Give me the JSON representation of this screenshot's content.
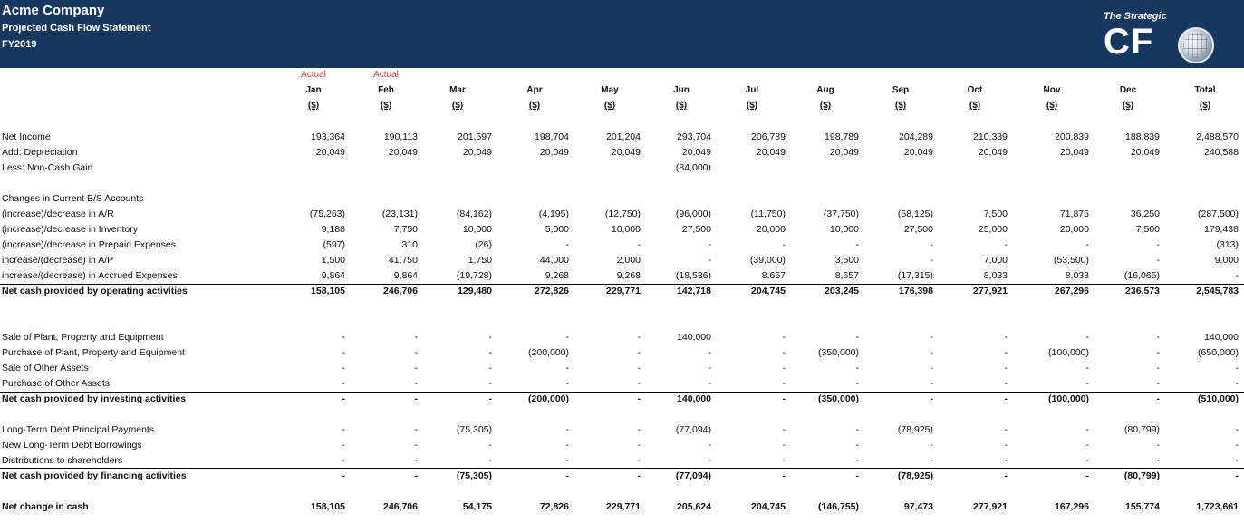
{
  "header": {
    "company": "Acme Company",
    "subtitle": "Projected Cash Flow Statement",
    "year": "FY2019",
    "logo_tagline": "The Strategic",
    "logo_mark": "CF"
  },
  "colors": {
    "header_bg": "#17385e",
    "actual_label": "#e53b2a"
  },
  "columns": [
    {
      "tag": "Actual",
      "month": "Jan",
      "unit": "($)"
    },
    {
      "tag": "Actual",
      "month": "Feb",
      "unit": "($)"
    },
    {
      "tag": "",
      "month": "Mar",
      "unit": "($)"
    },
    {
      "tag": "",
      "month": "Apr",
      "unit": "($)"
    },
    {
      "tag": "",
      "month": "May",
      "unit": "($)"
    },
    {
      "tag": "",
      "month": "Jun",
      "unit": "($)"
    },
    {
      "tag": "",
      "month": "Jul",
      "unit": "($)"
    },
    {
      "tag": "",
      "month": "Aug",
      "unit": "($)"
    },
    {
      "tag": "",
      "month": "Sep",
      "unit": "($)"
    },
    {
      "tag": "",
      "month": "Oct",
      "unit": "($)"
    },
    {
      "tag": "",
      "month": "Nov",
      "unit": "($)"
    },
    {
      "tag": "",
      "month": "Dec",
      "unit": "($)"
    },
    {
      "tag": "",
      "month": "Total",
      "unit": "($)"
    }
  ],
  "rows": [
    {
      "label": "Net Income",
      "values": [
        "193,364",
        "190,113",
        "201,597",
        "198,704",
        "201,204",
        "293,704",
        "206,789",
        "198,789",
        "204,289",
        "210,339",
        "200,839",
        "188,839",
        "2,488,570"
      ]
    },
    {
      "label": "Add: Depreciation",
      "values": [
        "20,049",
        "20,049",
        "20,049",
        "20,049",
        "20,049",
        "20,049",
        "20,049",
        "20,049",
        "20,049",
        "20,049",
        "20,049",
        "20,049",
        "240,588"
      ]
    },
    {
      "label": "Less: Non-Cash Gain",
      "values": [
        "",
        "",
        "",
        "",
        "",
        "(84,000)",
        "",
        "",
        "",
        "",
        "",
        "",
        ""
      ]
    },
    {
      "label": "Changes in Current B/S Accounts",
      "values": [
        "",
        "",
        "",
        "",
        "",
        "",
        "",
        "",
        "",
        "",
        "",
        "",
        ""
      ]
    },
    {
      "label": "(increase)/decrease in A/R",
      "values": [
        "(75,263)",
        "(23,131)",
        "(84,162)",
        "(4,195)",
        "(12,750)",
        "(96,000)",
        "(11,750)",
        "(37,750)",
        "(58,125)",
        "7,500",
        "71,875",
        "36,250",
        "(287,500)"
      ]
    },
    {
      "label": "(increase)/decrease in Inventory",
      "values": [
        "9,188",
        "7,750",
        "10,000",
        "5,000",
        "10,000",
        "27,500",
        "20,000",
        "10,000",
        "27,500",
        "25,000",
        "20,000",
        "7,500",
        "179,438"
      ]
    },
    {
      "label": "(increase)/decrease in Prepaid Expenses",
      "values": [
        "(597)",
        "310",
        "(26)",
        "-",
        "-",
        "-",
        "-",
        "-",
        "-",
        "-",
        "-",
        "-",
        "(313)"
      ]
    },
    {
      "label": "increase/(decrease) in A/P",
      "values": [
        "1,500",
        "41,750",
        "1,750",
        "44,000",
        "2,000",
        "-",
        "(39,000)",
        "3,500",
        "-",
        "7,000",
        "(53,500)",
        "-",
        "9,000"
      ]
    },
    {
      "label": "increase/(decrease) in Accrued Expenses",
      "values": [
        "9,864",
        "9,864",
        "(19,728)",
        "9,268",
        "9,268",
        "(18,536)",
        "8,657",
        "8,657",
        "(17,315)",
        "8,033",
        "8,033",
        "(16,065)",
        "-"
      ]
    },
    {
      "label": "Net cash provided by operating activities",
      "bold": true,
      "values": [
        "158,105",
        "246,706",
        "129,480",
        "272,826",
        "229,771",
        "142,718",
        "204,745",
        "203,245",
        "176,398",
        "277,921",
        "267,296",
        "236,573",
        "2,545,783"
      ]
    },
    {
      "label": "Sale of Plant, Property and Equipment",
      "values": [
        "-",
        "-",
        "-",
        "-",
        "-",
        "140,000",
        "-",
        "-",
        "-",
        "-",
        "-",
        "-",
        "140,000"
      ]
    },
    {
      "label": "Purchase of Plant, Property and Equipment",
      "values": [
        "-",
        "-",
        "-",
        "(200,000)",
        "-",
        "-",
        "-",
        "(350,000)",
        "-",
        "-",
        "(100,000)",
        "-",
        "(650,000)"
      ]
    },
    {
      "label": "Sale of Other Assets",
      "values": [
        "-",
        "-",
        "-",
        "-",
        "-",
        "-",
        "-",
        "-",
        "-",
        "-",
        "-",
        "-",
        "-"
      ]
    },
    {
      "label": "Purchase of Other Assets",
      "values": [
        "-",
        "-",
        "-",
        "-",
        "-",
        "-",
        "-",
        "-",
        "-",
        "-",
        "-",
        "-",
        "-"
      ]
    },
    {
      "label": "Net cash provided by investing activities",
      "bold": true,
      "values": [
        "-",
        "-",
        "-",
        "(200,000)",
        "-",
        "140,000",
        "-",
        "(350,000)",
        "-",
        "-",
        "(100,000)",
        "-",
        "(510,000)"
      ]
    },
    {
      "label": "Long-Term Debt Principal Payments",
      "values": [
        "-",
        "-",
        "(75,305)",
        "-",
        "-",
        "(77,094)",
        "-",
        "-",
        "(78,925)",
        "-",
        "-",
        "(80,799)",
        "-"
      ]
    },
    {
      "label": "New Long-Term Debt Borrowings",
      "values": [
        "-",
        "-",
        "-",
        "-",
        "-",
        "-",
        "-",
        "-",
        "-",
        "-",
        "-",
        "-",
        "-"
      ]
    },
    {
      "label": "Distributions to shareholders",
      "values": [
        "-",
        "-",
        "-",
        "-",
        "-",
        "-",
        "-",
        "-",
        "-",
        "-",
        "-",
        "-",
        "-"
      ]
    },
    {
      "label": " Net cash provided by financing activities",
      "bold": true,
      "values": [
        "-",
        "-",
        "(75,305)",
        "-",
        "-",
        "(77,094)",
        "-",
        "-",
        "(78,925)",
        "-",
        "-",
        "(80,799)",
        "-"
      ]
    },
    {
      "label": "Net change in cash",
      "bold": true,
      "values": [
        "158,105",
        "246,706",
        "54,175",
        "72,826",
        "229,771",
        "205,624",
        "204,745",
        "(146,755)",
        "97,473",
        "277,921",
        "167,296",
        "155,774",
        "1,723,661"
      ]
    }
  ]
}
